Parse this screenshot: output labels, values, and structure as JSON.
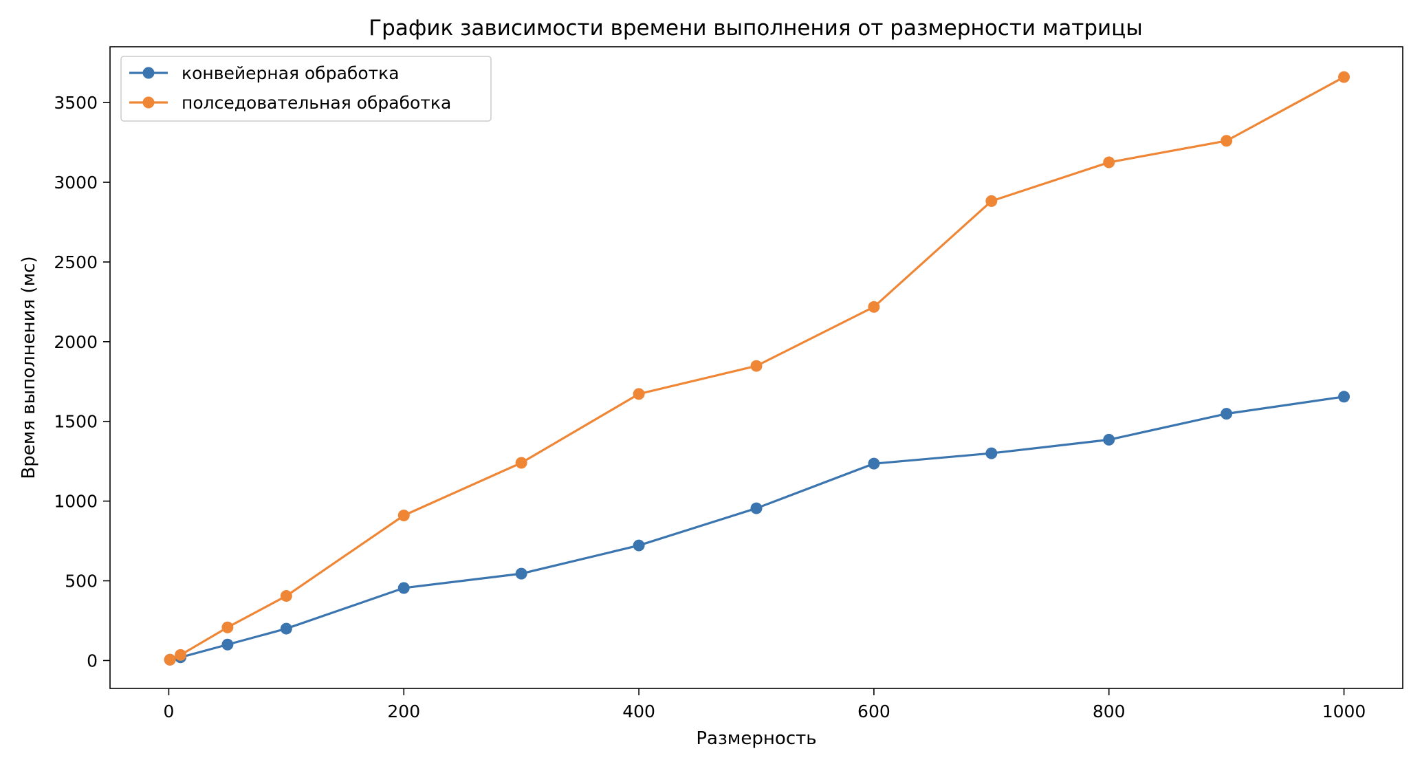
{
  "chart_data": {
    "type": "line",
    "title": "График зависимости времени выполнения от размерности матрицы",
    "xlabel": "Размерность",
    "ylabel": "Время выполнения (мс)",
    "xlim": [
      -50,
      1050
    ],
    "ylim": [
      -175,
      3850
    ],
    "xticks": [
      0,
      200,
      400,
      600,
      800,
      1000
    ],
    "yticks": [
      0,
      500,
      1000,
      1500,
      2000,
      2500,
      3000,
      3500
    ],
    "grid": false,
    "legend_position": "top-left",
    "marker": "circle",
    "x": [
      1,
      10,
      50,
      100,
      200,
      300,
      400,
      500,
      600,
      700,
      800,
      900,
      1000
    ],
    "series": [
      {
        "name": "конвейерная обработка",
        "color": "#3b75af",
        "values": [
          5,
          20,
          100,
          200,
          455,
          545,
          722,
          955,
          1235,
          1300,
          1385,
          1548,
          1655
        ]
      },
      {
        "name": "полседовательная обработка",
        "color": "#ef8636",
        "values": [
          5,
          35,
          208,
          405,
          910,
          1240,
          1672,
          1848,
          2218,
          2882,
          3125,
          3260,
          3660
        ]
      }
    ]
  }
}
